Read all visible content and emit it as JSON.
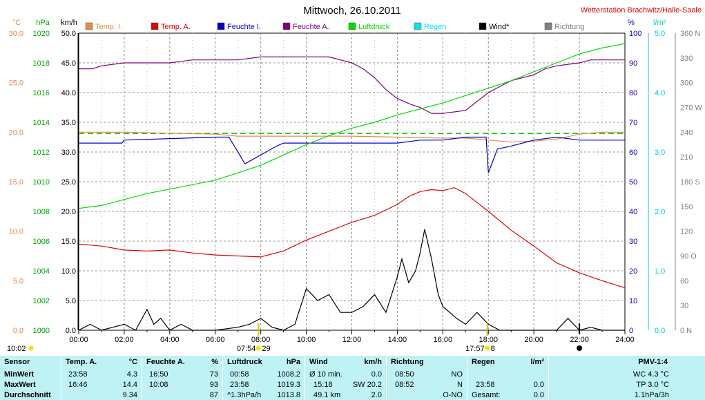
{
  "title": "Mittwoch, 26.10.2011",
  "station": "Wetterstation Brachwitz/Halle-Saale",
  "legend": [
    {
      "label": "Temp. I.",
      "color": "#e98a4b"
    },
    {
      "label": "Temp. A.",
      "color": "#e00000"
    },
    {
      "label": "Feuchte I.",
      "color": "#0000cc"
    },
    {
      "label": "Feuchte A.",
      "color": "#800080"
    },
    {
      "label": "Luftdruck",
      "color": "#00dd00"
    },
    {
      "label": "Regen",
      "color": "#00e5ee"
    },
    {
      "label": "Wind*",
      "color": "#000000"
    },
    {
      "label": "Richtung",
      "color": "#808080"
    }
  ],
  "chart_data": {
    "type": "line",
    "x_ticks": [
      "00:00",
      "02:00",
      "04:00",
      "06:00",
      "08:00",
      "10:00",
      "12:00",
      "14:00",
      "16:00",
      "18:00",
      "20:00",
      "22:00",
      "24:00"
    ],
    "axes": {
      "temp": {
        "unit": "°C",
        "range": [
          0,
          30
        ],
        "ticks": [
          "0.0",
          "5.0",
          "10.0",
          "15.0",
          "20.0",
          "25.0",
          "30.0"
        ],
        "color": "#e98a4b"
      },
      "pressure": {
        "unit": "hPa",
        "range": [
          1000,
          1020
        ],
        "ticks": [
          "1000",
          "1002",
          "1004",
          "1006",
          "1008",
          "1010",
          "1012",
          "1014",
          "1016",
          "1018",
          "1020"
        ],
        "color": "#00aa00"
      },
      "wind": {
        "unit": "km/h",
        "range": [
          0,
          50
        ],
        "ticks": [
          "0.0",
          "5.0",
          "10.0",
          "15.0",
          "20.0",
          "25.0",
          "30.0",
          "35.0",
          "40.0",
          "45.0",
          "50.0"
        ],
        "color": "#000000"
      },
      "humidity": {
        "unit": "%",
        "range": [
          0,
          100
        ],
        "ticks": [
          "0",
          "10",
          "20",
          "30",
          "40",
          "50",
          "60",
          "70",
          "80",
          "90",
          "100"
        ],
        "color": "#0000cc"
      },
      "rain": {
        "unit": "l/m²",
        "range": [
          0,
          5
        ],
        "ticks": [
          "0.0",
          "1.0",
          "2.0",
          "3.0",
          "4.0",
          "5.0"
        ],
        "color": "#00cccc"
      },
      "direction": {
        "unit": "",
        "range": [
          0,
          360
        ],
        "ticks": [
          "0 N",
          "30",
          "60",
          "90 O",
          "120",
          "150",
          "180 S",
          "210",
          "240",
          "270 W",
          "300",
          "330",
          "360 N"
        ],
        "color": "#808080"
      }
    },
    "series": [
      {
        "name": "Temp. I.",
        "axis": "temp",
        "color": "#e98a4b",
        "x": [
          0,
          2,
          4,
          6,
          7,
          8,
          10,
          12,
          14,
          16,
          17,
          18,
          19,
          20,
          21,
          22,
          23,
          24
        ],
        "y": [
          20,
          20,
          19.9,
          19.8,
          19.6,
          19.6,
          19.6,
          19.6,
          19.5,
          19.4,
          19.4,
          19.2,
          19.0,
          19.1,
          19.3,
          19.8,
          20.0,
          20.0
        ]
      },
      {
        "name": "Temp. A.",
        "axis": "temp",
        "color": "#e00000",
        "x": [
          0,
          1,
          2,
          3,
          4,
          5,
          6,
          7,
          8,
          9,
          10,
          11,
          12,
          13,
          14,
          14.5,
          15,
          15.5,
          16,
          16.5,
          17,
          18,
          19,
          20,
          21,
          22,
          23,
          23.98
        ],
        "y": [
          8.7,
          8.5,
          8.1,
          8.0,
          8.1,
          7.8,
          7.6,
          7.5,
          7.4,
          8.0,
          9.1,
          10.0,
          10.9,
          11.6,
          12.7,
          13.5,
          14.0,
          14.2,
          14.1,
          14.4,
          13.8,
          12.0,
          10.1,
          8.5,
          6.8,
          5.8,
          5.0,
          4.3
        ]
      },
      {
        "name": "Feuchte I.",
        "axis": "humidity",
        "color": "#0000cc",
        "x": [
          0,
          1.9,
          2,
          6,
          6.6,
          7,
          7.3,
          8,
          8.7,
          9,
          10,
          12,
          13,
          14,
          15,
          16,
          17,
          17.9,
          18,
          18.4,
          19,
          20,
          21,
          22,
          23,
          24
        ],
        "y": [
          63,
          63,
          64,
          65,
          65,
          60,
          56,
          59,
          62,
          63,
          63,
          63,
          63,
          63,
          64,
          64,
          65,
          65,
          53,
          61,
          62,
          64,
          65,
          64,
          64,
          64
        ]
      },
      {
        "name": "Feuchte A.",
        "axis": "humidity",
        "color": "#800080",
        "x": [
          0,
          0.6,
          1,
          2,
          3,
          4,
          5,
          6,
          7,
          8,
          9,
          10,
          11,
          12,
          12.5,
          13,
          13.5,
          14,
          14.6,
          15,
          15.5,
          16,
          17,
          17.5,
          18,
          18.5,
          19,
          20,
          20.5,
          21,
          22,
          22.5,
          23,
          24
        ],
        "y": [
          88,
          88,
          89,
          90,
          90,
          90,
          91,
          91,
          91,
          92,
          92,
          92,
          92,
          90,
          88,
          85,
          81,
          78,
          76,
          75,
          73,
          73,
          74,
          77,
          80,
          82,
          84,
          86,
          88,
          89,
          90,
          91,
          91,
          91
        ]
      },
      {
        "name": "Luftdruck",
        "axis": "pressure",
        "color": "#00dd00",
        "x": [
          0,
          1,
          2,
          3,
          4,
          5,
          6,
          7,
          8,
          9,
          10,
          11,
          12,
          13,
          14,
          15,
          16,
          17,
          18,
          19,
          20,
          21,
          22,
          23,
          24
        ],
        "y": [
          1008.2,
          1008.4,
          1008.8,
          1009.2,
          1009.5,
          1009.8,
          1010.1,
          1010.6,
          1011.1,
          1011.8,
          1012.5,
          1013.1,
          1013.6,
          1014.0,
          1014.5,
          1014.9,
          1015.3,
          1015.8,
          1016.3,
          1016.8,
          1017.4,
          1018.0,
          1018.6,
          1019.0,
          1019.3
        ]
      },
      {
        "name": "Wind*",
        "axis": "wind",
        "color": "#000000",
        "x": [
          0,
          0.5,
          1,
          1.5,
          2,
          2.5,
          3,
          3.3,
          3.6,
          4,
          4.5,
          5,
          6,
          7,
          7.5,
          8,
          8.5,
          9,
          9.5,
          10,
          10.5,
          11,
          11.5,
          12,
          12.5,
          13,
          13.5,
          14,
          14.2,
          14.5,
          14.8,
          15,
          15.2,
          15.5,
          15.8,
          16,
          16.3,
          16.6,
          17,
          17.5,
          18,
          18.5,
          19,
          20,
          21,
          21.5,
          22,
          22.5,
          23,
          24
        ],
        "y": [
          0,
          1,
          0,
          0.5,
          1,
          0,
          3.5,
          1,
          2,
          0,
          1,
          0,
          0,
          0.5,
          1,
          2,
          0.5,
          0,
          1,
          7,
          5,
          6,
          3,
          3,
          4,
          6,
          3,
          9,
          12,
          8,
          10,
          13,
          17,
          12,
          6,
          4,
          3,
          2,
          1,
          3,
          1,
          0,
          0,
          0,
          0,
          2,
          0,
          0.5,
          0,
          0
        ]
      }
    ],
    "reference_line": {
      "axis": "pressure",
      "value": 1013.25,
      "color": "#00bb00",
      "style": "dashed"
    },
    "sun": {
      "rise": "07:54",
      "set": "17:57",
      "rise_label": "07:54",
      "rise_sub": "29",
      "set_label": "17:57",
      "set_sub": "8",
      "left_label": "10:02",
      "moon": "22:00"
    }
  },
  "stats": {
    "headers": {
      "sensor": "Sensor",
      "temp": "Temp. A.",
      "temp_unit": "°C",
      "hum": "Feuchte A.",
      "hum_unit": "%",
      "press": "Luftdruck",
      "press_unit": "hPa",
      "wind": "Wind",
      "wind_unit": "km/h",
      "dir": "Richtung",
      "rain": "Regen",
      "rain_unit": "l/m²",
      "pmv": "PMV-1:4"
    },
    "rows": [
      "MinWert",
      "MaxWert",
      "Durchschnitt"
    ],
    "temp": [
      [
        "23:58",
        "4.3"
      ],
      [
        "16:46",
        "14.4"
      ],
      [
        "",
        "9.34"
      ]
    ],
    "hum": [
      [
        "16:50",
        "73"
      ],
      [
        "10:08",
        "93"
      ],
      [
        "",
        "87"
      ]
    ],
    "press": [
      [
        "00:58",
        "1008.2"
      ],
      [
        "23:58",
        "1019.3"
      ],
      [
        "^1.3hPa/h",
        "1013.8"
      ]
    ],
    "wind": [
      [
        "Ø 10 min.",
        "0.0"
      ],
      [
        "15:18",
        "SW 20.2"
      ],
      [
        "49.1 km",
        "2.0"
      ]
    ],
    "dir": [
      [
        "08:50",
        "NO"
      ],
      [
        "08:52",
        "N"
      ],
      [
        "",
        "O-NO"
      ]
    ],
    "rain": [
      [
        "",
        ""
      ],
      [
        "23:58",
        "0.0"
      ],
      [
        "Gesamt:",
        "0.0"
      ]
    ],
    "pmv": [
      "WC 4.3 °C",
      "TP 3.0 °C",
      "1.1hPa/3h"
    ]
  }
}
